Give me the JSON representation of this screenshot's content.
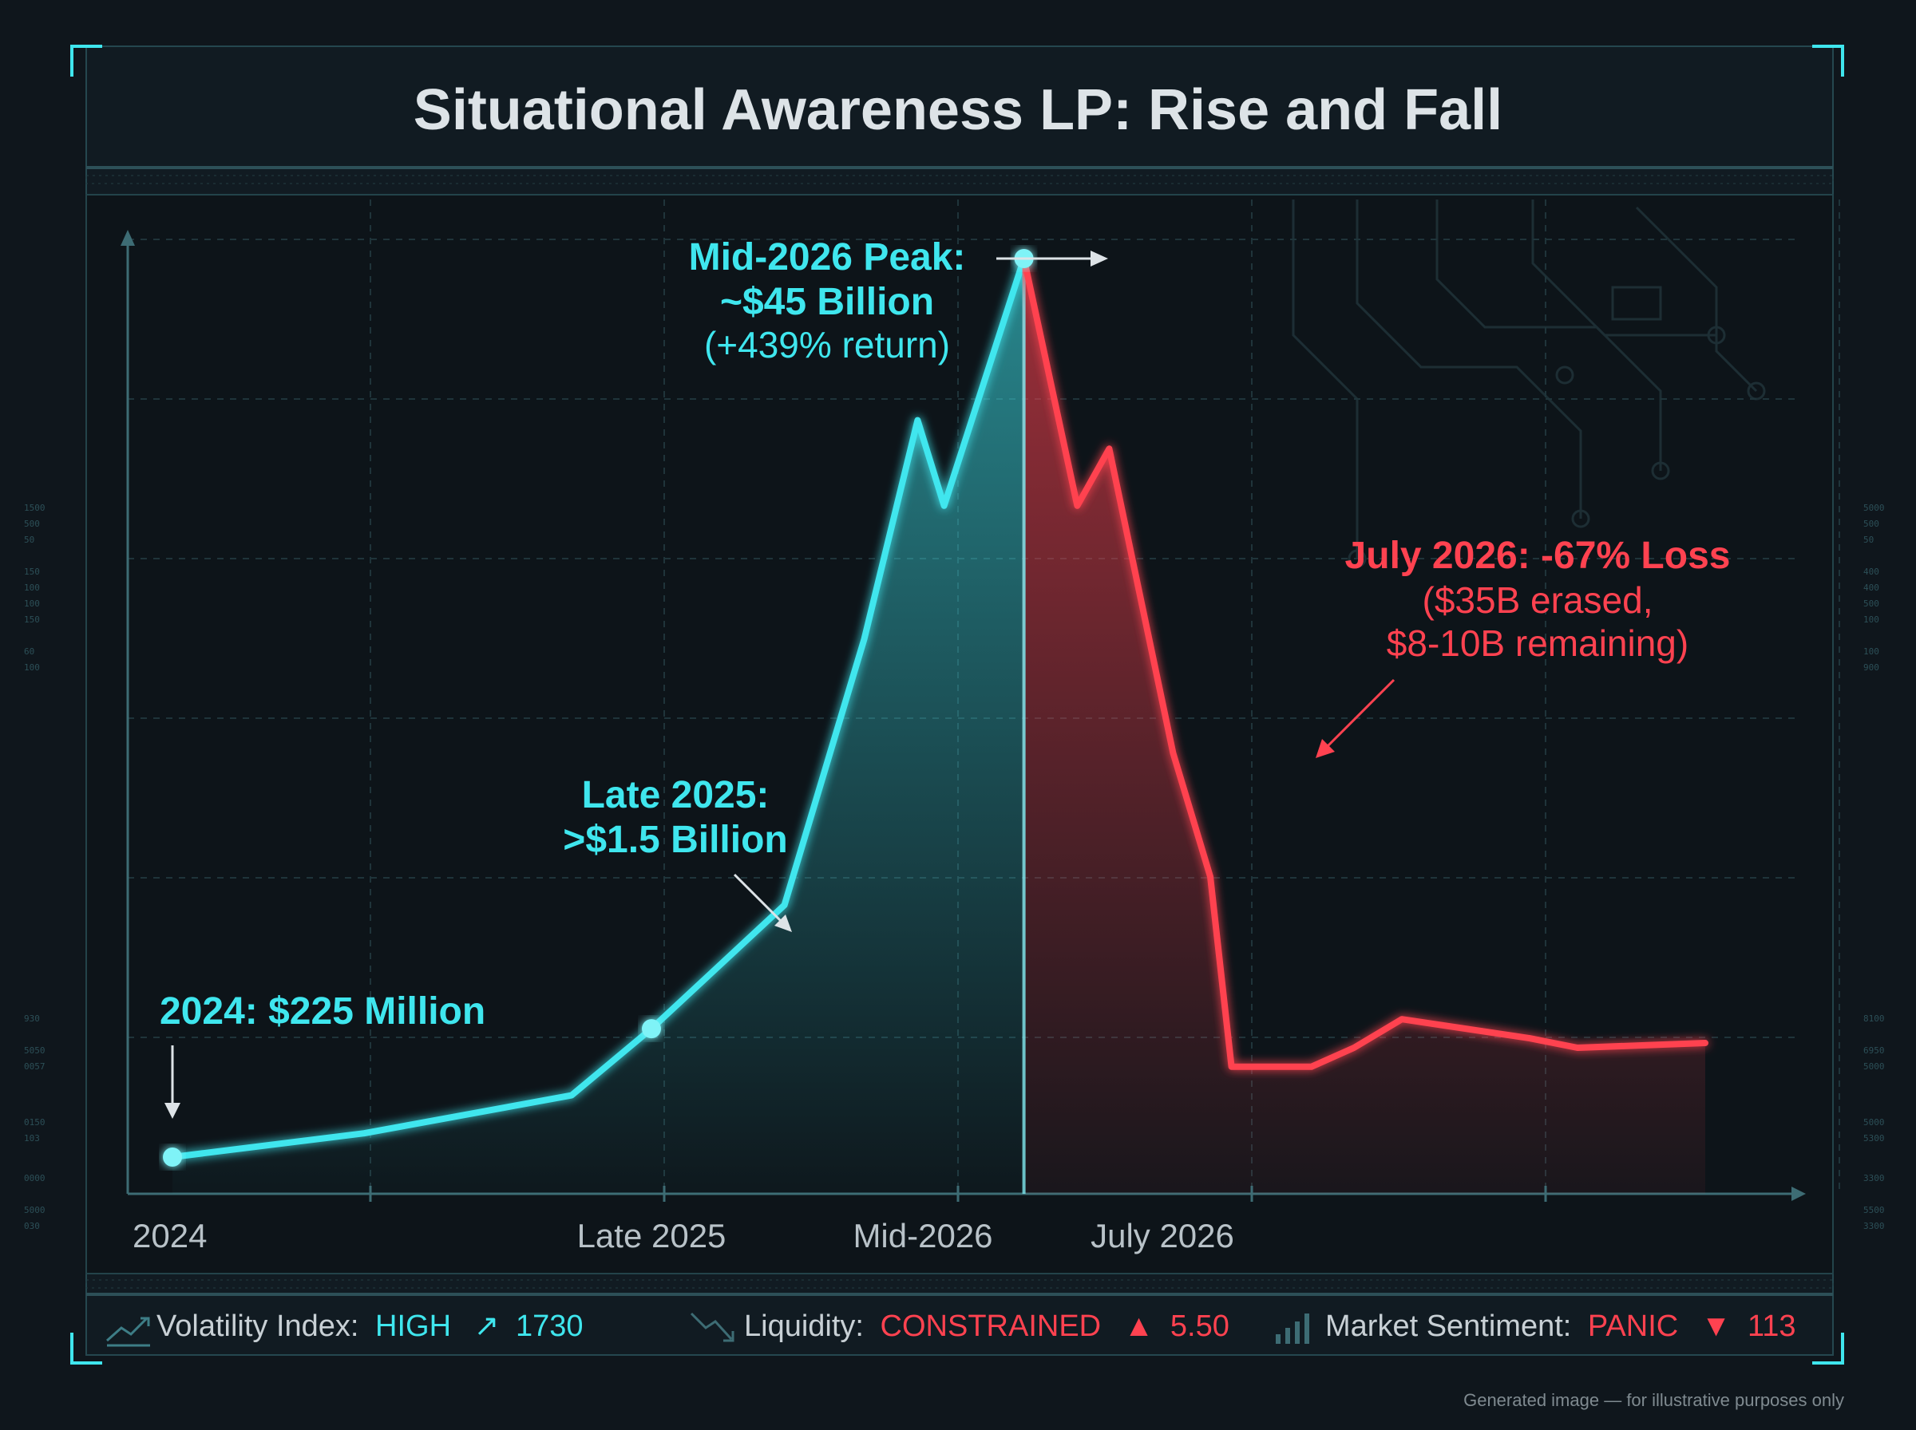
{
  "title": "Situational Awareness LP: Rise and Fall",
  "colors": {
    "rise": "#3fe6ee",
    "fall": "#ff4250",
    "text": "#d6dde2",
    "frame": "#2f6f78",
    "background": "#0f161c"
  },
  "annotations": {
    "start": {
      "label": "2024: $225 Million"
    },
    "late2025": {
      "line1": "Late 2025:",
      "line2": ">$1.5 Billion"
    },
    "peak": {
      "line1": "Mid-2026 Peak:",
      "line2": "~$45 Billion",
      "line3": "(+439% return)"
    },
    "july": {
      "line1": "July 2026: -67% Loss",
      "line2": "($35B erased,",
      "line3": "$8-10B remaining)"
    }
  },
  "status_bar": {
    "volatility": {
      "icon": "trend-up-icon",
      "label": "Volatility Index:",
      "state": "HIGH",
      "arrow": "↗",
      "value": "1730"
    },
    "liquidity": {
      "icon": "trend-down-icon",
      "label": "Liquidity:",
      "state": "CONSTRAINED",
      "arrow": "▲",
      "value": "5.50"
    },
    "sentiment": {
      "icon": "bars-icon",
      "label": "Market Sentiment:",
      "state": "PANIC",
      "arrow": "▼",
      "value": "113"
    }
  },
  "footer_note": "Generated image — for illustrative purposes only",
  "chart_data": {
    "type": "line",
    "title": "Situational Awareness LP: Rise and Fall",
    "x_tick_labels": [
      "2024",
      "Late 2025",
      "Mid-2026",
      "July 2026"
    ],
    "x_tick_positions": [
      0,
      0.3,
      0.47,
      0.62
    ],
    "y_scale": "illustrative (unlabeled)",
    "grid": true,
    "points": [
      [
        0,
        0.055
      ],
      [
        0.12,
        0.08
      ],
      [
        0.25,
        0.12
      ],
      [
        0.3,
        0.19
      ],
      [
        0.3833,
        0.32
      ],
      [
        0.4333,
        0.6
      ],
      [
        0.4667,
        0.83
      ],
      [
        0.4833,
        0.74
      ],
      [
        0.5333,
        1.0
      ],
      [
        0.5667,
        0.74
      ],
      [
        0.5867,
        0.8
      ],
      [
        0.6267,
        0.48
      ],
      [
        0.65,
        0.35
      ],
      [
        0.6633,
        0.15
      ],
      [
        0.7133,
        0.15
      ],
      [
        0.74,
        0.17
      ],
      [
        0.77,
        0.2
      ],
      [
        0.85,
        0.18
      ],
      [
        0.88,
        0.17
      ],
      [
        0.96,
        0.175
      ]
    ],
    "series": [
      {
        "name": "",
        "segment": "rise",
        "from_x": 0,
        "to_x": 0.5333
      },
      {
        "name": "",
        "segment": "fall",
        "from_x": 0.5333,
        "to_x": 0.96
      }
    ],
    "key_points": [
      {
        "x": 0,
        "value": "$225 Million"
      },
      {
        "x": 0.3,
        "value": ">$1.5 Billion"
      },
      {
        "x": 0.5333,
        "value": "~$45 Billion"
      }
    ]
  }
}
